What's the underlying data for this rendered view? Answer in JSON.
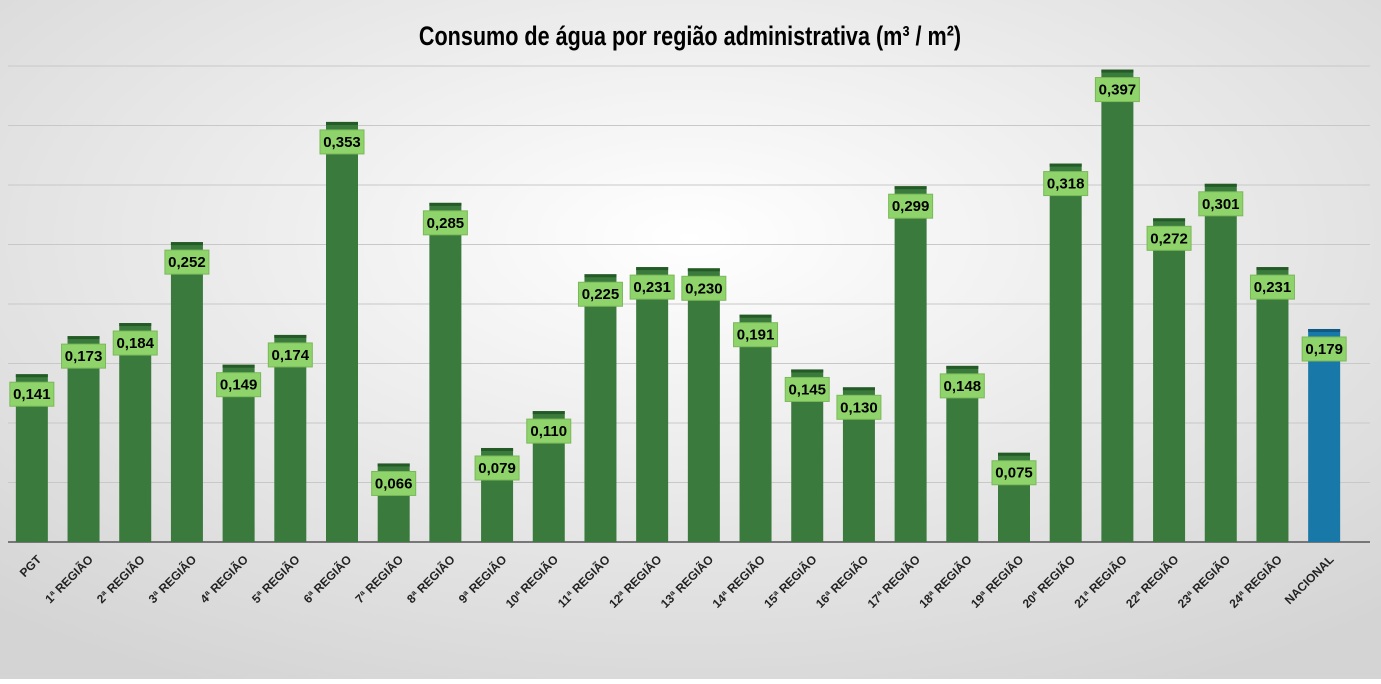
{
  "chart_data": {
    "type": "bar",
    "title": "Consumo de água por região administrativa (m³ / m²)",
    "categories": [
      "PGT",
      "1ª REGIÃO",
      "2ª REGIÃO",
      "3ª REGIÃO",
      "4ª REGIÃO",
      "5ª REGIÃO",
      "6ª REGIÃO",
      "7ª REGIÃO",
      "8ª REGIÃO",
      "9ª REGIÃO",
      "10ª REGIÃO",
      "11ª REGIÃO",
      "12ª REGIÃO",
      "13ª REGIÃO",
      "14ª REGIÃO",
      "15ª REGIÃO",
      "16ª REGIÃO",
      "17ª REGIÃO",
      "18ª REGIÃO",
      "19ª REGIÃO",
      "20ª REGIÃO",
      "21ª REGIÃO",
      "22ª REGIÃO",
      "23ª REGIÃO",
      "24ª REGIÃO",
      "NACIONAL"
    ],
    "values": [
      0.141,
      0.173,
      0.184,
      0.252,
      0.149,
      0.174,
      0.353,
      0.066,
      0.285,
      0.079,
      0.11,
      0.225,
      0.231,
      0.23,
      0.191,
      0.145,
      0.13,
      0.299,
      0.148,
      0.075,
      0.318,
      0.397,
      0.272,
      0.301,
      0.231,
      0.179
    ],
    "value_labels": [
      "0,141",
      "0,173",
      "0,184",
      "0,252",
      "0,149",
      "0,174",
      "0,353",
      "0,066",
      "0,285",
      "0,079",
      "0,110",
      "0,225",
      "0,231",
      "0,230",
      "0,191",
      "0,145",
      "0,130",
      "0,299",
      "0,148",
      "0,075",
      "0,318",
      "0,397",
      "0,272",
      "0,301",
      "0,231",
      "0,179"
    ],
    "colors": [
      "#3a7a3c",
      "#3a7a3c",
      "#3a7a3c",
      "#3a7a3c",
      "#3a7a3c",
      "#3a7a3c",
      "#3a7a3c",
      "#3a7a3c",
      "#3a7a3c",
      "#3a7a3c",
      "#3a7a3c",
      "#3a7a3c",
      "#3a7a3c",
      "#3a7a3c",
      "#3a7a3c",
      "#3a7a3c",
      "#3a7a3c",
      "#3a7a3c",
      "#3a7a3c",
      "#3a7a3c",
      "#3a7a3c",
      "#3a7a3c",
      "#3a7a3c",
      "#3a7a3c",
      "#3a7a3c",
      "#1878a8"
    ],
    "ylim": [
      0,
      0.4
    ],
    "yticks": [
      0,
      0.05,
      0.1,
      0.15,
      0.2,
      0.25,
      0.3,
      0.35,
      0.4
    ],
    "grid": true
  }
}
